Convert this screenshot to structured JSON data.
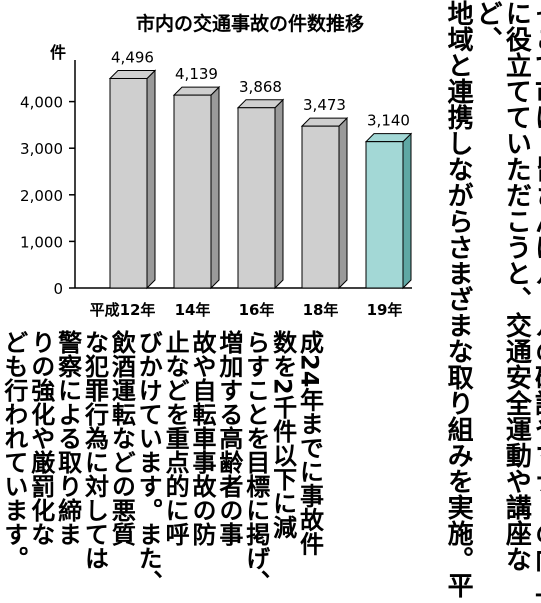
{
  "chart_data": {
    "type": "bar",
    "title": "市内の交通事故の件数推移",
    "ylabel": "件",
    "xlabel": "",
    "categories": [
      "平成12年",
      "14年",
      "16年",
      "18年",
      "19年"
    ],
    "values": [
      4496,
      4139,
      3868,
      3473,
      3140
    ],
    "value_labels": [
      "4,496",
      "4,139",
      "3,868",
      "3,473",
      "3,140"
    ],
    "ylim": [
      0,
      5000
    ],
    "yticks": [
      0,
      1000,
      2000,
      3000,
      4000
    ],
    "ytick_labels": [
      "0",
      "1,000",
      "2,000",
      "3,000",
      "4,000"
    ],
    "grid": false,
    "style": "3d",
    "colors": {
      "bar": "#cfcfcf",
      "highlight": "#a3d8d6",
      "bar_side": "#9a9a9a",
      "highlight_side": "#5fa8a4"
    },
    "highlight_index": 4
  },
  "article": {
    "upper_lines": [
      "そこで市は、皆さんにルールの確認やマナーの向上",
      "に役立てていただこうと、交通安全運動や講座など、",
      "地域と連携しながらさまざまな取り組みを実施。平"
    ],
    "lower_lines": [
      "成24年までに事故件",
      "数を2千件以下に減",
      "らすことを目標に掲げ、",
      "増加する高齢者の事",
      "故や自転車事故の防",
      "止などを重点的に呼",
      "びかけています。また、",
      "飲酒運転などの悪質",
      "な犯罪行為に対しては",
      "警察による取り締ま",
      "りの強化や厳罰化な",
      "ども行われています。"
    ]
  }
}
